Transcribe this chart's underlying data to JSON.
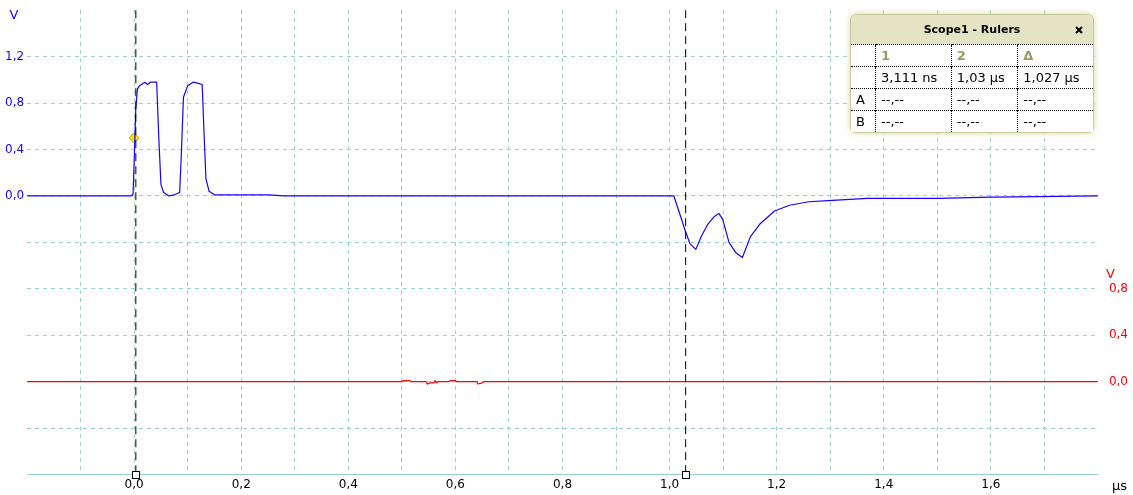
{
  "chart_data": {
    "type": "line",
    "xlabel": "μs",
    "ylabel": "V",
    "y2label": "V",
    "xlim": [
      -0.2,
      1.8
    ],
    "xticks": [
      {
        "value": -0.1,
        "label": null
      },
      {
        "value": 0,
        "label": "0,0"
      },
      {
        "value": 0.1,
        "label": null
      },
      {
        "value": 0.2,
        "label": "0,2"
      },
      {
        "value": 0.3,
        "label": null
      },
      {
        "value": 0.4,
        "label": "0,4"
      },
      {
        "value": 0.5,
        "label": null
      },
      {
        "value": 0.6,
        "label": "0,6"
      },
      {
        "value": 0.7,
        "label": null
      },
      {
        "value": 0.8,
        "label": "0,8"
      },
      {
        "value": 0.9,
        "label": null
      },
      {
        "value": 1.0,
        "label": "1,0"
      },
      {
        "value": 1.1,
        "label": null
      },
      {
        "value": 1.2,
        "label": "1,2"
      },
      {
        "value": 1.3,
        "label": null
      },
      {
        "value": 1.4,
        "label": "1,4"
      },
      {
        "value": 1.5,
        "label": null
      },
      {
        "value": 1.6,
        "label": "1,6"
      },
      {
        "value": 1.7,
        "label": null
      }
    ],
    "ylim": [
      -2.4,
      1.6
    ],
    "yticks": [
      {
        "value": -2.0,
        "label": null
      },
      {
        "value": -1.6,
        "label": null
      },
      {
        "value": -1.2,
        "label": null
      },
      {
        "value": -0.8,
        "label": null
      },
      {
        "value": -0.4,
        "label": null
      },
      {
        "value": 0,
        "label": "0,0"
      },
      {
        "value": 0.4,
        "label": "0,4"
      },
      {
        "value": 0.8,
        "label": "0,8"
      },
      {
        "value": 1.2,
        "label": "1,2"
      }
    ],
    "y2lim": [
      -0.8,
      3.2
    ],
    "y2ticks": [
      {
        "value": 0,
        "label": "0,0"
      },
      {
        "value": 0.4,
        "label": "0,4"
      },
      {
        "value": 0.8,
        "label": "0,8"
      }
    ],
    "grid": true,
    "legend": false,
    "marker": "none",
    "line_style": "solid",
    "ref_lines": [
      {
        "axis": "x",
        "value": 0.003111,
        "color": "#000000",
        "line_style": "dashed"
      },
      {
        "axis": "x",
        "value": 1.03,
        "color": "#000000",
        "line_style": "dashed"
      }
    ],
    "annotations": [
      "Scope1 - Rulers",
      "1",
      "2",
      "Δ",
      "3,111 ns",
      "1,03 μs",
      "1,027 μs",
      "A",
      "--,--",
      "--,--",
      "--,--",
      "B",
      "--,--",
      "--,--",
      "--,--"
    ],
    "series": [
      {
        "color": "#1a00ff",
        "x": [
          -0.2,
          -0.005,
          -0.002,
          0.0,
          0.003,
          0.006,
          0.01,
          0.02,
          0.025,
          0.03,
          0.042,
          0.046,
          0.05,
          0.055,
          0.065,
          0.075,
          0.085,
          0.088,
          0.092,
          0.1,
          0.11,
          0.12,
          0.127,
          0.13,
          0.134,
          0.14,
          0.15,
          0.2,
          0.25,
          0.28,
          1.0,
          1.008,
          1.018,
          1.03,
          1.038,
          1.049,
          1.06,
          1.072,
          1.083,
          1.092,
          1.099,
          1.111,
          1.124,
          1.136,
          1.151,
          1.169,
          1.196,
          1.224,
          1.26,
          1.296,
          1.369,
          1.502,
          1.6,
          1.8
        ],
        "values": [
          0,
          0,
          0.02,
          0.3,
          0.75,
          0.92,
          0.95,
          0.98,
          0.96,
          0.98,
          0.98,
          0.5,
          0.1,
          0.03,
          0.0,
          0.01,
          0.03,
          0.35,
          0.85,
          0.95,
          0.98,
          0.97,
          0.96,
          0.6,
          0.15,
          0.04,
          0.01,
          0.01,
          0.01,
          0,
          0,
          0,
          -0.14,
          -0.31,
          -0.41,
          -0.46,
          -0.34,
          -0.24,
          -0.18,
          -0.15,
          -0.2,
          -0.4,
          -0.49,
          -0.53,
          -0.35,
          -0.24,
          -0.13,
          -0.08,
          -0.05,
          -0.04,
          -0.02,
          -0.02,
          -0.01,
          0
        ]
      },
      {
        "color": "#ff0000",
        "axis": "y2",
        "x": [
          -0.2,
          0.5,
          0.502,
          0.515,
          0.517,
          0.545,
          0.548,
          0.553,
          0.56,
          0.562,
          0.565,
          0.568,
          0.588,
          0.59,
          0.6,
          0.602,
          0.64,
          0.642,
          0.65,
          0.652,
          1.8
        ],
        "values": [
          0,
          0,
          0.01,
          0.01,
          0,
          0,
          -0.02,
          -0.01,
          -0.01,
          0.01,
          -0.01,
          0,
          0,
          0.01,
          0.01,
          0,
          0,
          -0.02,
          -0.01,
          0,
          0
        ]
      },
      {
        "type": "scatter",
        "color": "#f5e400",
        "marker": "diamond",
        "x": [
          0
        ],
        "values": [
          0.5
        ]
      }
    ]
  }
}
